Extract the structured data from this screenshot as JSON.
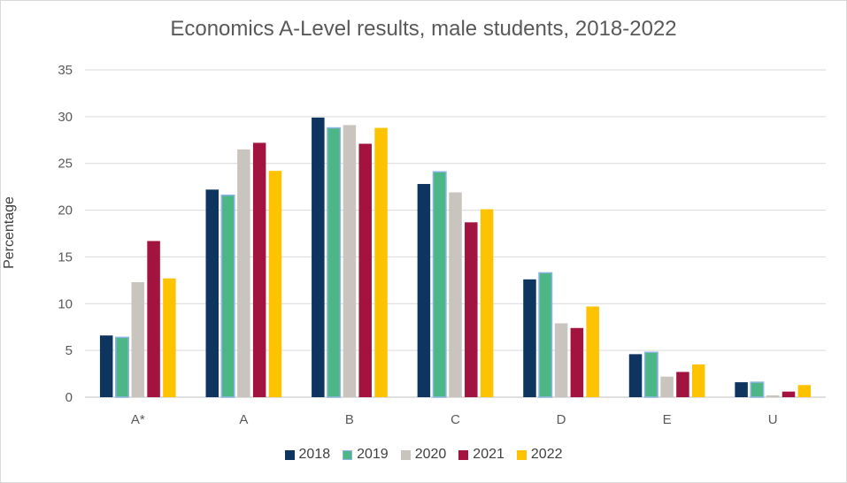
{
  "chart_data": {
    "type": "bar",
    "title": "Economics A-Level results, male students, 2018-2022",
    "xlabel": "",
    "ylabel": "Percentage",
    "ylim": [
      0,
      35
    ],
    "yticks": [
      0,
      5,
      10,
      15,
      20,
      25,
      30,
      35
    ],
    "grid": true,
    "legend_position": "bottom",
    "categories": [
      "A*",
      "A",
      "B",
      "C",
      "D",
      "E",
      "U"
    ],
    "series": [
      {
        "name": "2018",
        "color": "#0e3560",
        "values": [
          6.6,
          22.2,
          29.9,
          22.8,
          12.6,
          4.6,
          1.6
        ]
      },
      {
        "name": "2019",
        "color": "#4cb686",
        "values": [
          6.4,
          21.6,
          28.8,
          24.1,
          13.3,
          4.8,
          1.6
        ]
      },
      {
        "name": "2020",
        "color": "#c9c4bd",
        "values": [
          12.3,
          26.5,
          29.1,
          21.9,
          7.9,
          2.2,
          0.2
        ]
      },
      {
        "name": "2021",
        "color": "#a21340",
        "values": [
          16.7,
          27.2,
          27.1,
          18.7,
          7.4,
          2.7,
          0.6
        ]
      },
      {
        "name": "2022",
        "color": "#fdc300",
        "values": [
          12.7,
          24.2,
          28.8,
          20.1,
          9.7,
          3.5,
          1.3
        ]
      }
    ]
  }
}
